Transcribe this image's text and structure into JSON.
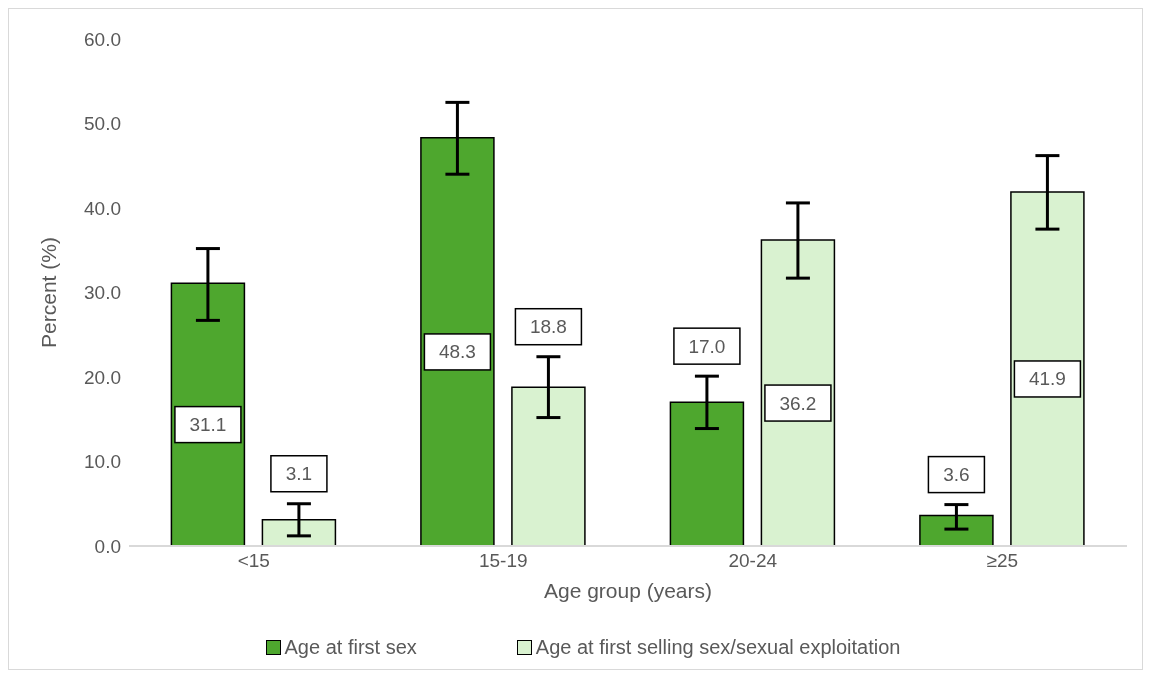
{
  "chart_data": {
    "type": "bar",
    "xlabel": "Age group (years)",
    "ylabel": "Percent (%)",
    "categories": [
      "<15",
      "15-19",
      "20-24",
      "≥25"
    ],
    "series": [
      {
        "name": "Age at first sex",
        "color": "#4ea72e",
        "values": [
          31.1,
          48.3,
          17.0,
          3.6
        ],
        "value_labels": [
          "31.1",
          "48.3",
          "17.0",
          "3.6"
        ],
        "errors": [
          [
            26.7,
            35.2
          ],
          [
            44.0,
            52.5
          ],
          [
            13.9,
            20.1
          ],
          [
            2.0,
            4.9
          ]
        ]
      },
      {
        "name": "Age at first selling sex/sexual exploitation",
        "color": "#d9f2d0",
        "values": [
          3.1,
          18.8,
          36.2,
          41.9
        ],
        "value_labels": [
          "3.1",
          "18.8",
          "36.2",
          "41.9"
        ],
        "errors": [
          [
            1.2,
            5.0
          ],
          [
            15.2,
            22.4
          ],
          [
            31.7,
            40.6
          ],
          [
            37.5,
            46.2
          ]
        ]
      }
    ],
    "ylim": [
      0,
      60
    ],
    "yticks": [
      {
        "value": 0,
        "label": "0.0"
      },
      {
        "value": 10,
        "label": "10.0"
      },
      {
        "value": 20,
        "label": "20.0"
      },
      {
        "value": 30,
        "label": "30.0"
      },
      {
        "value": 40,
        "label": "40.0"
      },
      {
        "value": 50,
        "label": "50.0"
      },
      {
        "value": 60,
        "label": "60.0"
      }
    ],
    "grid": false,
    "legend": "bottom"
  }
}
